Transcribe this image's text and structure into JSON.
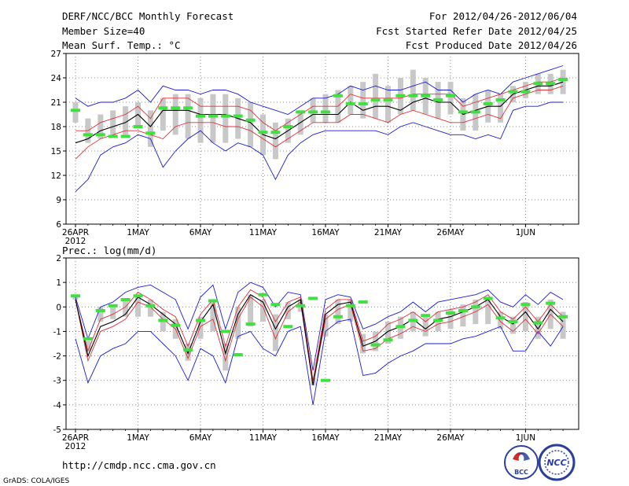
{
  "header": {
    "title": "DERF/NCC/BCC Monthly Forecast",
    "member_size": "Member Size=40",
    "forecast_range": "For 2012/04/26-2012/06/04",
    "fcst_started": "Fcst Started Refer Date 2012/04/25",
    "fcst_produced": "Fcst Produced Date 2012/04/26"
  },
  "footer": {
    "url": "http://cmdp.ncc.cma.gov.cn",
    "grads": "GrADS: COLA/IGES",
    "logo_left": "BCC",
    "logo_right": "NCC"
  },
  "colors": {
    "ensemble_mean": "#000000",
    "spread_inner": "#e0303a",
    "spread_outer": "#1a1ad8",
    "observation": "#40e040",
    "box": "#c8c8c8"
  },
  "chart_data": [
    {
      "type": "line",
      "title": "Mean Surf. Temp.: °C",
      "ylim": [
        6,
        27
      ],
      "yticks": [
        6,
        9,
        12,
        15,
        18,
        21,
        24,
        27
      ],
      "x_tick_labels": [
        {
          "day": 0,
          "label": "26APR",
          "sub": "2012"
        },
        {
          "day": 5,
          "label": "1MAY"
        },
        {
          "day": 10,
          "label": "6MAY"
        },
        {
          "day": 15,
          "label": "11MAY"
        },
        {
          "day": 20,
          "label": "16MAY"
        },
        {
          "day": 25,
          "label": "21MAY"
        },
        {
          "day": 30,
          "label": "26MAY"
        },
        {
          "day": 36,
          "label": "1JUN"
        }
      ],
      "days": 40,
      "series": [
        {
          "name": "max",
          "values": [
            10.0,
            11.5,
            14.5,
            15.5,
            16.0,
            17.0,
            16.5,
            13.0,
            15.0,
            16.5,
            17.5,
            16.0,
            15.0,
            16.0,
            15.5,
            14.5,
            11.5,
            14.5,
            16.0,
            17.0,
            17.5,
            17.5,
            17.5,
            17.5,
            17.5,
            17.0,
            18.0,
            18.5,
            18.0,
            17.5,
            17.0,
            17.0,
            16.5,
            17.0,
            16.5,
            20.0,
            20.5,
            20.5,
            21.0,
            21.0
          ]
        },
        {
          "name": "upper",
          "values": [
            14.0,
            15.5,
            16.5,
            17.0,
            17.5,
            17.5,
            17.0,
            16.5,
            18.0,
            18.5,
            18.5,
            18.5,
            18.0,
            18.0,
            17.5,
            16.5,
            15.5,
            16.5,
            17.5,
            18.5,
            18.5,
            18.5,
            19.5,
            19.5,
            19.0,
            18.5,
            19.5,
            20.0,
            19.5,
            19.0,
            18.5,
            18.5,
            19.0,
            19.5,
            19.0,
            21.5,
            22.0,
            22.5,
            22.5,
            23.0
          ]
        },
        {
          "name": "mean",
          "values": [
            16.0,
            16.5,
            17.5,
            18.0,
            18.5,
            19.5,
            18.0,
            20.0,
            20.0,
            20.0,
            19.5,
            19.5,
            19.5,
            19.0,
            18.5,
            17.0,
            16.5,
            17.5,
            18.5,
            19.5,
            19.5,
            19.5,
            21.0,
            20.0,
            20.5,
            20.5,
            20.0,
            21.0,
            21.5,
            21.0,
            21.0,
            19.5,
            20.0,
            20.5,
            20.5,
            22.0,
            22.5,
            23.0,
            23.0,
            23.5
          ]
        },
        {
          "name": "lower",
          "values": [
            17.5,
            17.5,
            18.5,
            19.0,
            19.5,
            20.5,
            19.0,
            21.5,
            21.5,
            21.5,
            20.5,
            20.5,
            20.5,
            20.5,
            20.0,
            18.5,
            17.5,
            18.5,
            19.5,
            20.5,
            20.5,
            20.5,
            22.0,
            21.5,
            21.5,
            21.5,
            21.5,
            22.0,
            22.0,
            22.0,
            22.0,
            20.5,
            21.0,
            21.5,
            22.0,
            22.5,
            23.0,
            23.5,
            23.5,
            24.0
          ]
        },
        {
          "name": "min",
          "values": [
            21.5,
            20.5,
            21.0,
            21.0,
            21.5,
            22.5,
            21.0,
            23.0,
            22.5,
            22.5,
            22.0,
            22.5,
            22.5,
            22.0,
            21.0,
            20.5,
            20.0,
            19.5,
            20.5,
            21.5,
            21.5,
            22.0,
            23.0,
            22.5,
            23.0,
            22.5,
            22.5,
            23.0,
            23.5,
            22.5,
            22.5,
            21.0,
            22.0,
            22.5,
            22.0,
            23.5,
            24.0,
            24.5,
            25.0,
            25.5
          ]
        },
        {
          "name": "box_low",
          "values": [
            18.5,
            16.0,
            16.5,
            17.0,
            17.0,
            18.0,
            15.5,
            17.5,
            17.0,
            16.5,
            16.0,
            16.0,
            16.0,
            16.5,
            15.5,
            14.5,
            14.0,
            16.0,
            17.0,
            18.5,
            18.5,
            18.5,
            19.5,
            19.0,
            19.0,
            18.5,
            19.5,
            20.0,
            19.5,
            19.0,
            19.5,
            17.5,
            17.5,
            18.5,
            18.5,
            21.0,
            21.5,
            22.0,
            22.0,
            22.0
          ]
        },
        {
          "name": "box_high",
          "values": [
            21.0,
            19.0,
            19.5,
            20.0,
            20.5,
            21.0,
            20.0,
            21.5,
            22.0,
            22.0,
            21.5,
            22.0,
            22.0,
            21.5,
            21.0,
            19.5,
            18.5,
            19.0,
            20.0,
            21.5,
            22.0,
            22.5,
            23.0,
            23.5,
            24.5,
            23.0,
            24.0,
            25.0,
            24.0,
            23.5,
            23.5,
            21.5,
            22.0,
            22.5,
            22.0,
            23.0,
            23.5,
            24.5,
            24.5,
            25.0
          ]
        },
        {
          "name": "observation",
          "values": [
            20.0,
            17.0,
            17.0,
            16.8,
            16.8,
            18.0,
            17.2,
            20.3,
            20.3,
            20.3,
            19.3,
            19.3,
            19.3,
            19.3,
            18.8,
            17.3,
            17.3,
            18.0,
            19.8,
            19.8,
            19.8,
            21.8,
            20.8,
            20.8,
            21.3,
            21.3,
            21.8,
            21.8,
            21.8,
            21.3,
            21.8,
            19.8,
            19.8,
            20.8,
            21.3,
            22.3,
            22.3,
            23.3,
            23.3,
            23.8
          ]
        }
      ]
    },
    {
      "type": "line",
      "title": "Prec.: log(mm/d)",
      "ylim": [
        -5,
        2
      ],
      "yticks": [
        -5,
        -4,
        -3,
        -2,
        -1,
        0,
        1,
        2
      ],
      "x_tick_labels": [
        {
          "day": 0,
          "label": "26APR",
          "sub": "2012"
        },
        {
          "day": 5,
          "label": "1MAY"
        },
        {
          "day": 10,
          "label": "6MAY"
        },
        {
          "day": 15,
          "label": "11MAY"
        },
        {
          "day": 20,
          "label": "16MAY"
        },
        {
          "day": 25,
          "label": "21MAY"
        },
        {
          "day": 30,
          "label": "26MAY"
        },
        {
          "day": 36,
          "label": "1JUN"
        }
      ],
      "days": 40,
      "series": [
        {
          "name": "max",
          "values": [
            -1.3,
            -3.1,
            -2.0,
            -1.7,
            -1.5,
            -1.0,
            -1.0,
            -1.5,
            -2.0,
            -3.0,
            -1.7,
            -2.0,
            -3.1,
            -1.2,
            -1.0,
            -1.7,
            -2.0,
            -1.0,
            -0.8,
            -4.0,
            -1.0,
            -0.6,
            -0.5,
            -2.8,
            -2.7,
            -2.3,
            -2.0,
            -1.8,
            -1.5,
            -1.5,
            -1.5,
            -1.3,
            -1.2,
            -1.0,
            -0.8,
            -1.8,
            -1.8,
            -1.0,
            -1.6,
            -0.8
          ]
        },
        {
          "name": "upper",
          "values": [
            0.3,
            -2.2,
            -1.0,
            -0.8,
            -0.5,
            0.2,
            0.0,
            -0.5,
            -0.9,
            -2.1,
            -0.8,
            -0.5,
            -2.2,
            -0.5,
            0.4,
            0.0,
            -1.3,
            -0.2,
            0.2,
            -3.2,
            -0.5,
            -0.1,
            0.1,
            -1.8,
            -1.7,
            -1.3,
            -1.1,
            -0.8,
            -1.0,
            -0.7,
            -0.6,
            -0.4,
            -0.2,
            0.1,
            -0.6,
            -1.0,
            -0.5,
            -1.1,
            -0.3,
            -0.8
          ]
        },
        {
          "name": "mean",
          "values": [
            0.3,
            -2.0,
            -0.8,
            -0.6,
            -0.3,
            0.4,
            0.1,
            -0.3,
            -0.7,
            -1.9,
            -0.6,
            0.1,
            -1.9,
            -0.3,
            0.5,
            0.2,
            -0.9,
            0.0,
            0.3,
            -3.2,
            -0.3,
            0.1,
            0.2,
            -1.6,
            -1.4,
            -1.0,
            -0.8,
            -0.5,
            -0.9,
            -0.5,
            -0.4,
            -0.2,
            0.0,
            0.3,
            -0.4,
            -0.7,
            -0.2,
            -0.9,
            -0.1,
            -0.6
          ]
        },
        {
          "name": "lower",
          "values": [
            0.3,
            -1.8,
            -0.5,
            -0.3,
            0.0,
            0.6,
            0.3,
            -0.1,
            -0.4,
            -1.6,
            -0.3,
            0.3,
            -1.6,
            0.0,
            0.7,
            0.4,
            -0.6,
            0.2,
            0.4,
            -3.0,
            -0.1,
            0.3,
            0.3,
            -1.4,
            -1.2,
            -0.7,
            -0.5,
            -0.2,
            -0.6,
            -0.2,
            -0.1,
            0.0,
            0.2,
            0.5,
            -0.2,
            -0.5,
            0.0,
            -0.6,
            0.1,
            -0.4
          ]
        },
        {
          "name": "min",
          "values": [
            0.4,
            -1.3,
            0.0,
            0.2,
            0.6,
            0.8,
            0.9,
            0.6,
            0.3,
            -0.9,
            0.4,
            0.9,
            -0.9,
            0.6,
            1.0,
            0.8,
            0.0,
            0.6,
            0.5,
            -2.6,
            0.3,
            0.5,
            0.4,
            -0.9,
            -0.7,
            -0.4,
            -0.2,
            0.2,
            -0.2,
            0.2,
            0.3,
            0.4,
            0.5,
            0.7,
            0.2,
            0.0,
            0.5,
            0.1,
            0.6,
            0.3
          ]
        },
        {
          "name": "box_low",
          "values": [
            0.3,
            -1.8,
            -0.6,
            -0.5,
            -0.4,
            -0.4,
            -0.4,
            -1.0,
            -1.3,
            -2.2,
            -1.3,
            -1.0,
            -2.6,
            -1.3,
            -0.8,
            -0.6,
            -1.8,
            -0.5,
            -0.2,
            -3.2,
            -1.2,
            -0.7,
            -0.6,
            -1.9,
            -1.8,
            -1.5,
            -1.3,
            -1.0,
            -1.2,
            -1.0,
            -0.9,
            -0.8,
            -0.7,
            -0.7,
            -0.9,
            -1.1,
            -1.0,
            -1.3,
            -0.9,
            -1.3
          ]
        },
        {
          "name": "box_high",
          "values": [
            0.4,
            -1.4,
            0.0,
            0.0,
            0.3,
            0.5,
            0.3,
            -0.2,
            -0.5,
            -1.5,
            -0.4,
            0.3,
            -1.5,
            0.0,
            0.5,
            0.3,
            -0.3,
            0.2,
            0.3,
            -2.9,
            -0.3,
            0.3,
            0.3,
            -1.1,
            -1.0,
            -0.6,
            -0.4,
            -0.2,
            -0.4,
            -0.2,
            -0.1,
            0.1,
            0.3,
            0.4,
            -0.2,
            -0.4,
            0.2,
            -0.4,
            0.3,
            -0.2
          ]
        },
        {
          "name": "observation",
          "values": [
            0.45,
            -1.3,
            -0.15,
            0.05,
            0.3,
            0.45,
            0.05,
            -0.55,
            -0.75,
            -1.75,
            -0.55,
            0.25,
            -1.0,
            -1.95,
            -0.7,
            0.5,
            0.1,
            -0.8,
            0.05,
            0.35,
            -3.0,
            -0.4,
            0.05,
            0.2,
            -1.55,
            -1.35,
            -0.8,
            -0.55,
            -0.35,
            -0.55,
            -0.25,
            -0.15,
            0.0,
            0.35,
            -0.45,
            -0.6,
            0.1,
            -0.65,
            0.15,
            -0.4
          ]
        }
      ]
    }
  ]
}
